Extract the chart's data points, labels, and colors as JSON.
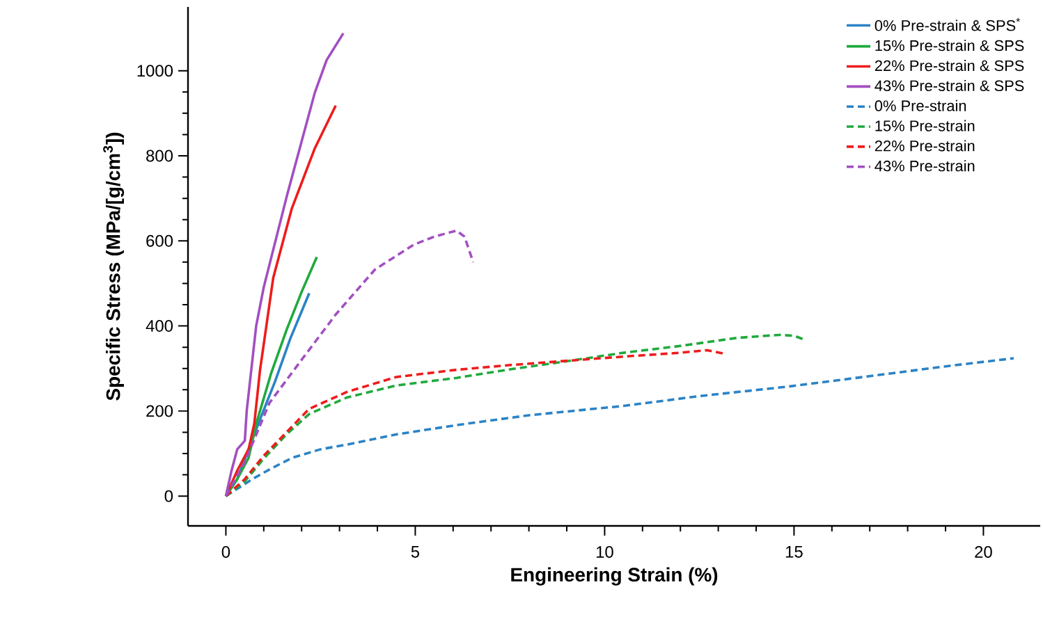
{
  "chart_data": {
    "type": "line",
    "xlabel": "Engineering Strain (%)",
    "ylabel": "Specific Stress (MPa/[g/cm$^{3}$])",
    "xlim": [
      -1,
      21.5
    ],
    "ylim": [
      -70,
      1150
    ],
    "xticks": [
      0,
      5,
      10,
      15,
      20
    ],
    "yticks": [
      0,
      200,
      400,
      600,
      800,
      1000
    ],
    "legend": "top right",
    "series": [
      {
        "name": "0% Pre-strain & SPS$^{*}$",
        "color": "#2b83c6",
        "line_style": "solid",
        "x": [
          0,
          0.3,
          0.6,
          0.9,
          1.3,
          1.7,
          2.2
        ],
        "values": [
          0,
          40,
          110,
          180,
          270,
          370,
          477
        ]
      },
      {
        "name": "15% Pre-strain & SPS",
        "color": "#1faa3c",
        "line_style": "solid",
        "x": [
          0,
          0.3,
          0.6,
          0.8,
          1.2,
          1.6,
          2.0,
          2.4
        ],
        "values": [
          0,
          40,
          90,
          170,
          290,
          390,
          480,
          562
        ]
      },
      {
        "name": "22% Pre-strain & SPS",
        "color": "#ee1c1c",
        "line_style": "solid",
        "x": [
          0,
          0.3,
          0.6,
          0.75,
          0.9,
          1.25,
          1.74,
          2.35,
          2.9
        ],
        "values": [
          0,
          60,
          110,
          170,
          295,
          513,
          676,
          818,
          918
        ]
      },
      {
        "name": "43% Pre-strain & SPS",
        "color": "#a24fc0",
        "line_style": "solid",
        "x": [
          0,
          0.15,
          0.3,
          0.5,
          0.55,
          0.8,
          1.0,
          1.62,
          2.35,
          2.66,
          3.1
        ],
        "values": [
          0,
          60,
          110,
          130,
          200,
          400,
          491,
          709,
          949,
          1025,
          1088
        ]
      },
      {
        "name": "0% Pre-strain",
        "color": "#2b83c6",
        "line_style": "dashed",
        "x": [
          0,
          0.7,
          1.2,
          1.75,
          2.5,
          3.2,
          4.5,
          6.1,
          8,
          10.5,
          12.5,
          14.9,
          17,
          19,
          20.8
        ],
        "values": [
          0,
          40,
          65,
          90,
          110,
          121,
          145,
          167,
          190,
          212,
          235,
          258,
          282,
          305,
          324
        ]
      },
      {
        "name": "15% Pre-strain",
        "color": "#1faa3c",
        "line_style": "dashed",
        "x": [
          0,
          0.5,
          1.0,
          1.6,
          2.2,
          3.2,
          4.5,
          6.1,
          7.5,
          9,
          10.5,
          12,
          13.5,
          14.6,
          15.0,
          15.3
        ],
        "values": [
          0,
          35,
          88,
          145,
          193,
          232,
          260,
          278,
          298,
          317,
          337,
          353,
          372,
          379,
          377,
          367
        ]
      },
      {
        "name": "22% Pre-strain",
        "color": "#ee1c1c",
        "line_style": "dashed",
        "x": [
          0,
          0.5,
          1.0,
          1.6,
          2.2,
          3.2,
          4.5,
          6.1,
          7.5,
          9,
          10.5,
          12,
          12.7,
          13.2
        ],
        "values": [
          0,
          40,
          95,
          150,
          205,
          245,
          280,
          297,
          308,
          318,
          328,
          337,
          343,
          334
        ]
      },
      {
        "name": "43% Pre-strain",
        "color": "#a24fc0",
        "line_style": "dashed",
        "x": [
          0,
          0.5,
          1.15,
          2.03,
          2.91,
          3.94,
          4.96,
          5.5,
          6.09,
          6.3,
          6.53
        ],
        "values": [
          0,
          80,
          219,
          324,
          428,
          533,
          591,
          610,
          624,
          610,
          550
        ]
      }
    ]
  }
}
